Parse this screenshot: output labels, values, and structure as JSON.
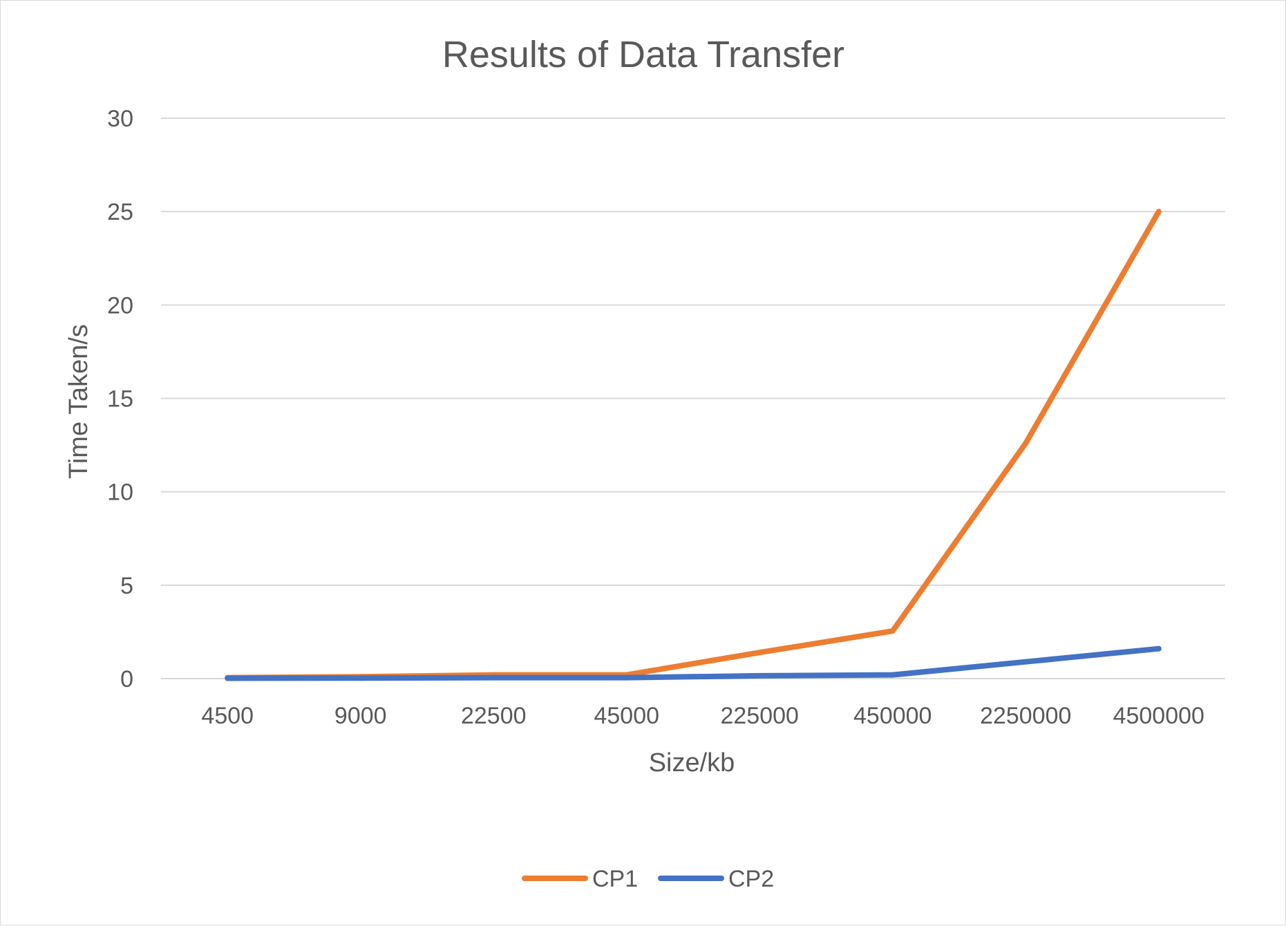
{
  "chart_data": {
    "type": "line",
    "title": "Results of Data Transfer",
    "xlabel": "Size/kb",
    "ylabel": "Time Taken/s",
    "categories": [
      "4500",
      "9000",
      "22500",
      "45000",
      "225000",
      "450000",
      "2250000",
      "4500000"
    ],
    "series": [
      {
        "name": "CP1",
        "color": "#ed7d31",
        "values": [
          0.05,
          0.1,
          0.2,
          0.2,
          1.4,
          2.55,
          12.6,
          25.0
        ]
      },
      {
        "name": "CP2",
        "color": "#4472c4",
        "values": [
          0.02,
          0.03,
          0.05,
          0.05,
          0.15,
          0.2,
          0.9,
          1.6
        ]
      }
    ],
    "ylim": [
      0,
      30
    ],
    "yticks": [
      0,
      5,
      10,
      15,
      20,
      25,
      30
    ],
    "grid": "horizontal",
    "legend_position": "bottom"
  }
}
